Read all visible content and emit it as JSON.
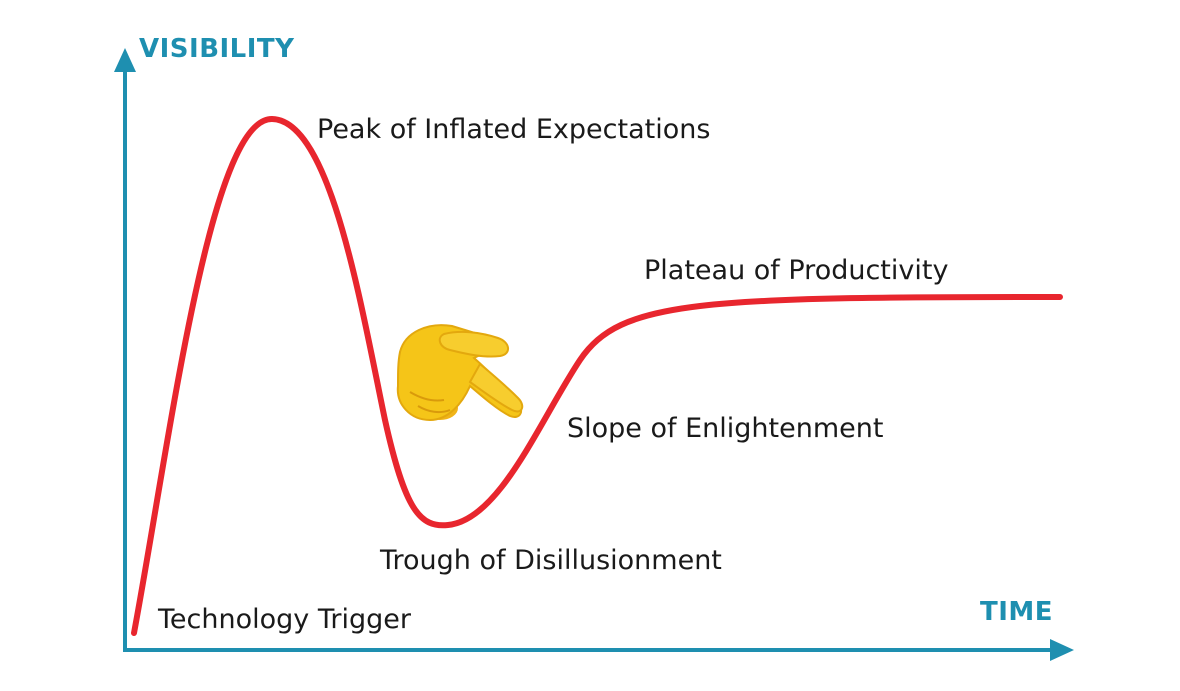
{
  "diagram": {
    "y_axis_label": "VISIBILITY",
    "x_axis_label": "TIME",
    "phases": [
      {
        "label": "Technology Trigger"
      },
      {
        "label": "Peak of Inflated Expectations"
      },
      {
        "label": "Trough of Disillusionment"
      },
      {
        "label": "Slope of Enlightenment"
      },
      {
        "label": "Plateau of Productivity"
      }
    ],
    "pointer_emoji": "backhand-index-pointing-right",
    "colors": {
      "axis": "#1e8fb0",
      "curve": "#e8262e",
      "text": "#1a1a1a",
      "hand": "#f5c518"
    }
  }
}
